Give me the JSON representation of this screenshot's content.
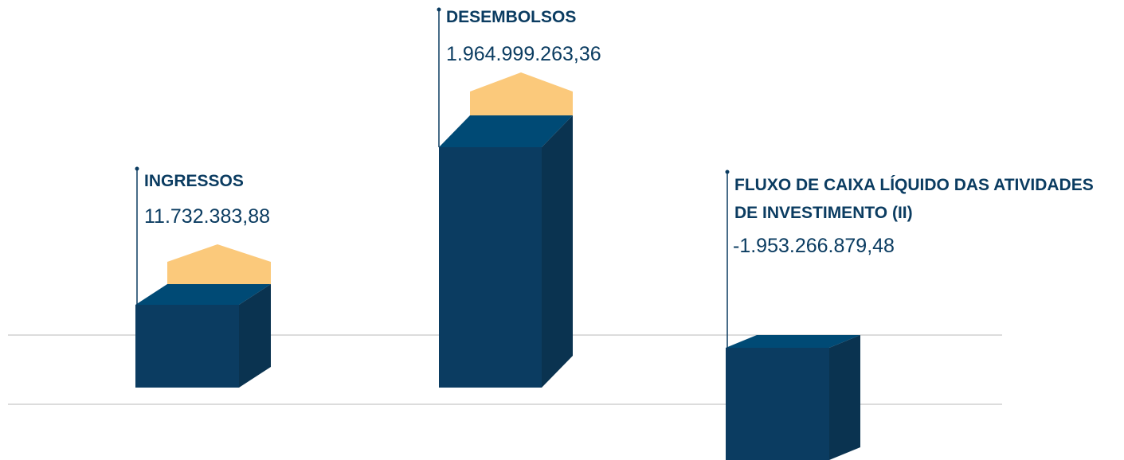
{
  "items": [
    {
      "label": "INGRESSOS",
      "value": "11.732.383,88"
    },
    {
      "label": "DESEMBOLSOS",
      "value": "1.964.999.263,36"
    },
    {
      "label": "FLUXO DE CAIXA LÍQUIDO DAS ATIVIDADES DE INVESTIMENTO (II)",
      "value": "-1.953.266.879,48"
    }
  ]
}
